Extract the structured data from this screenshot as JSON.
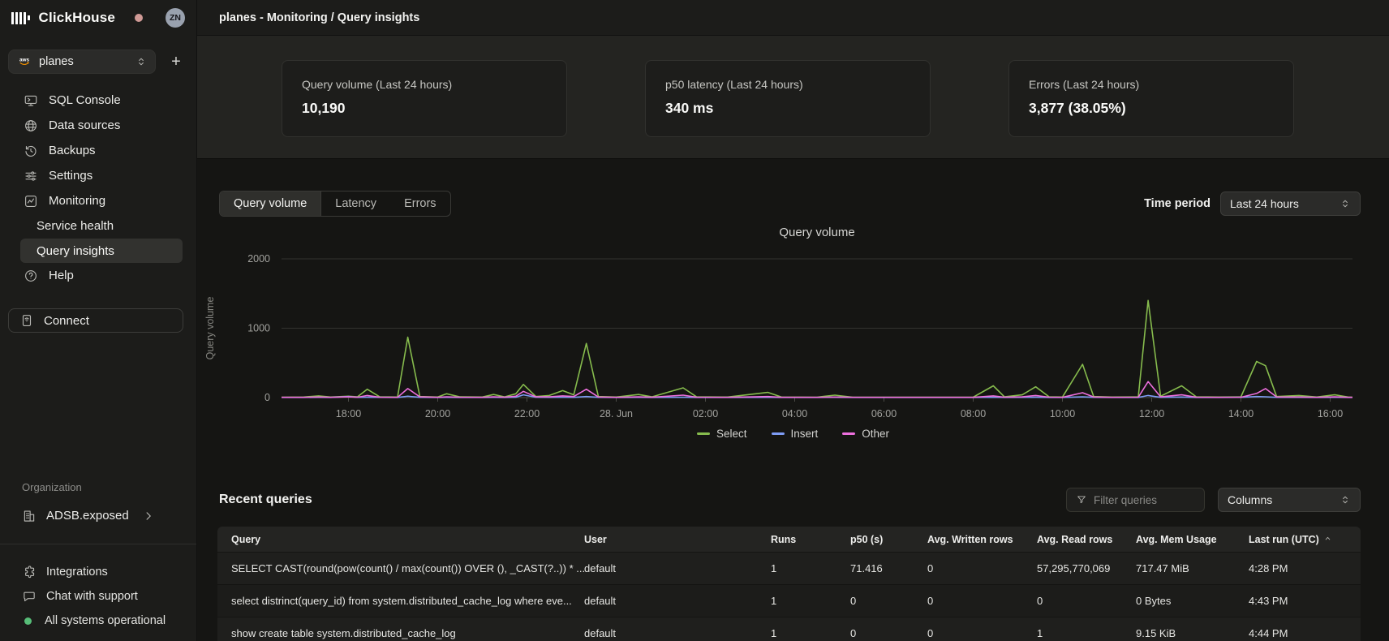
{
  "brand": {
    "name": "ClickHouse",
    "avatar_initials": "ZN",
    "notification_dot_color": "#d09a96"
  },
  "header": {
    "title": "planes - Monitoring / Query insights"
  },
  "sidebar": {
    "service_selector": {
      "value": "planes",
      "provider_icon": "aws-icon"
    },
    "add_button": "+",
    "items": [
      {
        "label": "SQL Console",
        "icon": "sql-console-icon"
      },
      {
        "label": "Data sources",
        "icon": "data-sources-icon"
      },
      {
        "label": "Backups",
        "icon": "backups-icon"
      },
      {
        "label": "Settings",
        "icon": "settings-icon"
      },
      {
        "label": "Monitoring",
        "icon": "monitoring-icon"
      },
      {
        "label": "Service health",
        "indent": true
      },
      {
        "label": "Query insights",
        "indent": true,
        "active": true
      },
      {
        "label": "Help",
        "icon": "help-icon"
      }
    ],
    "connect_label": "Connect",
    "organization": {
      "section_label": "Organization",
      "name": "ADSB.exposed"
    },
    "footer_items": [
      {
        "label": "Integrations",
        "icon": "integrations-icon"
      },
      {
        "label": "Chat with support",
        "icon": "chat-icon"
      },
      {
        "label": "All systems operational",
        "icon": "status-dot",
        "status_color": "#57bd78"
      }
    ]
  },
  "stats": [
    {
      "label": "Query volume (Last 24 hours)",
      "value": "10,190"
    },
    {
      "label": "p50 latency (Last 24 hours)",
      "value": "340 ms"
    },
    {
      "label": "Errors (Last 24 hours)",
      "value": "3,877 (38.05%)"
    }
  ],
  "tabs": {
    "active_index": 0,
    "labels": [
      "Query volume",
      "Latency",
      "Errors"
    ]
  },
  "time_period": {
    "label": "Time period",
    "value": "Last 24 hours"
  },
  "chart_data": {
    "type": "line",
    "title": "Query volume",
    "xlabel": "",
    "ylabel": "Query volume",
    "ylim": [
      0,
      2000
    ],
    "y_ticks": [
      0,
      1000,
      2000
    ],
    "grid": "horizontal",
    "legend_position": "bottom",
    "x_unit": "hours elapsed; axis spans 16:30 Jun 27 to 16:30 Jun 28 (UTC)",
    "x_range_hours": [
      0,
      24
    ],
    "x_ticks": [
      {
        "t": 1.5,
        "label": "18:00"
      },
      {
        "t": 3.5,
        "label": "20:00"
      },
      {
        "t": 5.5,
        "label": "22:00"
      },
      {
        "t": 7.5,
        "label": "28. Jun"
      },
      {
        "t": 9.5,
        "label": "02:00"
      },
      {
        "t": 11.5,
        "label": "04:00"
      },
      {
        "t": 13.5,
        "label": "06:00"
      },
      {
        "t": 15.5,
        "label": "08:00"
      },
      {
        "t": 17.5,
        "label": "10:00"
      },
      {
        "t": 19.5,
        "label": "12:00"
      },
      {
        "t": 21.5,
        "label": "14:00"
      },
      {
        "t": 23.5,
        "label": "16:00"
      }
    ],
    "x": [
      0,
      0.5,
      0.83,
      1.1,
      1.5,
      1.7,
      1.92,
      2.2,
      2.6,
      2.83,
      3.1,
      3.5,
      3.7,
      4.0,
      4.5,
      4.75,
      5.0,
      5.25,
      5.42,
      5.7,
      6.0,
      6.3,
      6.55,
      6.83,
      7.1,
      7.5,
      8.0,
      8.3,
      9.0,
      9.3,
      10.0,
      10.9,
      11.2,
      12.0,
      12.4,
      12.8,
      13.5,
      14.5,
      15.5,
      15.95,
      16.2,
      16.6,
      16.9,
      17.2,
      17.5,
      17.95,
      18.2,
      18.6,
      19.2,
      19.42,
      19.7,
      20.17,
      20.5,
      21.0,
      21.5,
      21.85,
      22.05,
      22.3,
      22.8,
      23.2,
      23.6,
      23.9,
      24.0
    ],
    "series": [
      {
        "name": "Select",
        "color": "#86bb4d",
        "values": [
          5,
          8,
          25,
          8,
          20,
          10,
          120,
          10,
          8,
          870,
          15,
          8,
          55,
          10,
          8,
          45,
          10,
          55,
          190,
          15,
          30,
          100,
          40,
          780,
          15,
          8,
          45,
          10,
          140,
          10,
          8,
          75,
          8,
          6,
          35,
          6,
          5,
          5,
          6,
          170,
          10,
          40,
          155,
          12,
          8,
          480,
          15,
          8,
          10,
          1400,
          20,
          170,
          10,
          8,
          10,
          520,
          460,
          15,
          30,
          8,
          40,
          8,
          6
        ]
      },
      {
        "name": "Insert",
        "color": "#7e9cf5",
        "values": [
          2,
          2,
          3,
          2,
          15,
          3,
          5,
          3,
          2,
          20,
          4,
          2,
          3,
          2,
          2,
          3,
          2,
          5,
          40,
          5,
          3,
          5,
          4,
          15,
          3,
          2,
          3,
          2,
          5,
          2,
          2,
          4,
          2,
          2,
          3,
          2,
          2,
          2,
          2,
          5,
          2,
          3,
          5,
          2,
          2,
          10,
          3,
          2,
          2,
          30,
          4,
          8,
          2,
          2,
          3,
          15,
          12,
          3,
          3,
          2,
          3,
          2,
          2
        ]
      },
      {
        "name": "Other",
        "color": "#ed6fdd",
        "values": [
          3,
          4,
          8,
          4,
          10,
          5,
          30,
          5,
          4,
          130,
          10,
          4,
          12,
          5,
          4,
          10,
          5,
          20,
          90,
          10,
          10,
          25,
          15,
          120,
          8,
          4,
          10,
          5,
          35,
          5,
          4,
          15,
          4,
          3,
          8,
          3,
          3,
          3,
          3,
          25,
          5,
          10,
          30,
          6,
          4,
          70,
          8,
          4,
          5,
          230,
          10,
          40,
          5,
          4,
          5,
          60,
          130,
          8,
          8,
          4,
          10,
          4,
          3
        ]
      }
    ]
  },
  "recent_queries": {
    "title": "Recent queries",
    "filter_placeholder": "Filter queries",
    "columns_label": "Columns",
    "headers": [
      "Query",
      "User",
      "Runs",
      "p50 (s)",
      "Avg. Written rows",
      "Avg. Read rows",
      "Avg. Mem Usage",
      "Last run (UTC)"
    ],
    "sorted_column": "Last run (UTC)",
    "sort_direction": "asc",
    "rows": [
      [
        "SELECT CAST(round(pow(count() / max(count()) OVER (), _CAST(?..)) * ...",
        "default",
        "1",
        "71.416",
        "0",
        "57,295,770,069",
        "717.47 MiB",
        "4:28 PM"
      ],
      [
        "select distrinct(query_id) from system.distributed_cache_log where eve...",
        "default",
        "1",
        "0",
        "0",
        "0",
        "0 Bytes",
        "4:43 PM"
      ],
      [
        "show create table system.distributed_cache_log",
        "default",
        "1",
        "0",
        "0",
        "1",
        "9.15 KiB",
        "4:44 PM"
      ]
    ]
  }
}
